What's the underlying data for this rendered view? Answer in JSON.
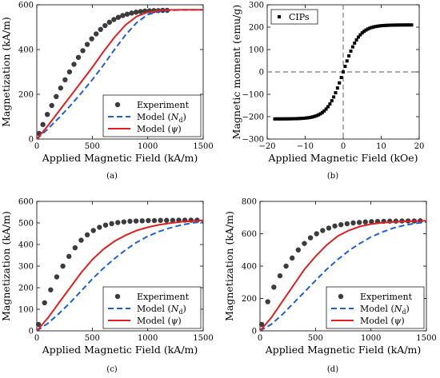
{
  "panel_labels": [
    "(a)",
    "(b)",
    "(c)",
    "(d)"
  ],
  "colors": {
    "experiment": "#3c3c3c",
    "model_nd": "#1f5fd6",
    "model_psi": "#e02020",
    "cips": "#000000",
    "zero_line": "#777777"
  },
  "chart_data": [
    {
      "id": "a",
      "type": "scatter+line",
      "xlabel": "Applied Magnetic Field (kA/m)",
      "ylabel": "Magnetization (kA/m)",
      "xlim": [
        0,
        1500
      ],
      "ylim": [
        0,
        600
      ],
      "xticks": [
        0,
        500,
        1000,
        1500
      ],
      "yticks": [
        0,
        200,
        400,
        600
      ],
      "legend": {
        "position": "bottom-right",
        "entries": [
          "Experiment",
          "Model (N_d)",
          "Model (ψ)"
        ]
      },
      "series": [
        {
          "name": "Experiment",
          "style": "markers",
          "x": [
            20,
            55,
            95,
            135,
            175,
            215,
            255,
            295,
            335,
            375,
            415,
            455,
            495,
            535,
            575,
            615,
            655,
            695,
            735,
            775,
            815,
            855,
            895,
            935,
            975,
            1015,
            1055,
            1095,
            1135,
            1175
          ],
          "y": [
            25,
            65,
            110,
            150,
            190,
            228,
            265,
            300,
            334,
            365,
            395,
            423,
            448,
            470,
            490,
            507,
            522,
            534,
            544,
            552,
            558,
            563,
            567,
            570,
            572,
            573,
            574,
            574,
            575,
            575
          ]
        },
        {
          "name": "Model (N_d)",
          "style": "dashed",
          "x": [
            0,
            100,
            200,
            300,
            400,
            500,
            600,
            700,
            800,
            900,
            1000,
            1100,
            1200,
            1300,
            1400,
            1500
          ],
          "y": [
            0,
            45,
            95,
            148,
            205,
            265,
            330,
            400,
            465,
            520,
            556,
            570,
            575,
            577,
            578,
            578
          ]
        },
        {
          "name": "Model (ψ)",
          "style": "solid",
          "x": [
            0,
            100,
            200,
            300,
            400,
            500,
            600,
            700,
            800,
            900,
            1000,
            1100,
            1200,
            1300,
            1400,
            1500
          ],
          "y": [
            0,
            60,
            125,
            190,
            255,
            320,
            390,
            455,
            510,
            548,
            567,
            574,
            577,
            578,
            578,
            578
          ]
        }
      ]
    },
    {
      "id": "b",
      "type": "scatter",
      "xlabel": "Applied Magnetic Field (kOe)",
      "ylabel": "Magnetic moment (emu/g)",
      "xlim": [
        -20,
        20
      ],
      "ylim": [
        -300,
        300
      ],
      "xticks": [
        -20,
        -10,
        0,
        10,
        20
      ],
      "yticks": [
        -300,
        -200,
        -100,
        0,
        100,
        200,
        300
      ],
      "legend": {
        "position": "top-left",
        "entries": [
          "CIPs"
        ]
      },
      "series": [
        {
          "name": "CIPs",
          "style": "square-markers",
          "function": "210*tanh(x/4.2)",
          "x_range": [
            -18,
            18
          ],
          "n_points": 73
        }
      ]
    },
    {
      "id": "c",
      "type": "scatter+line",
      "xlabel": "Applied Magnetic Field (kA/m)",
      "ylabel": "Magnetization (kA/m)",
      "xlim": [
        0,
        1500
      ],
      "ylim": [
        0,
        600
      ],
      "xticks": [
        0,
        500,
        1000,
        1500
      ],
      "yticks": [
        0,
        100,
        200,
        300,
        400,
        500,
        600
      ],
      "legend": {
        "position": "bottom-right",
        "entries": [
          "Experiment",
          "Model (N_d)",
          "Model (ψ)"
        ]
      },
      "series": [
        {
          "name": "Experiment",
          "style": "markers",
          "x": [
            15,
            70,
            125,
            180,
            235,
            290,
            345,
            400,
            455,
            510,
            565,
            620,
            675,
            730,
            785,
            840,
            895,
            950,
            1005,
            1060,
            1115,
            1170,
            1225,
            1280,
            1335,
            1390,
            1445
          ],
          "y": [
            30,
            130,
            190,
            250,
            300,
            345,
            385,
            420,
            445,
            465,
            480,
            490,
            497,
            502,
            505,
            508,
            509,
            510,
            511,
            511,
            512,
            512,
            512,
            513,
            513,
            513,
            513
          ]
        },
        {
          "name": "Model (N_d)",
          "style": "dashed",
          "x": [
            0,
            100,
            200,
            300,
            400,
            500,
            600,
            700,
            800,
            900,
            1000,
            1100,
            1200,
            1300,
            1400,
            1500
          ],
          "y": [
            0,
            35,
            80,
            130,
            185,
            240,
            290,
            335,
            375,
            410,
            438,
            460,
            477,
            490,
            500,
            506
          ]
        },
        {
          "name": "Model (ψ)",
          "style": "solid",
          "x": [
            0,
            100,
            200,
            300,
            400,
            500,
            600,
            700,
            800,
            900,
            1000,
            1100,
            1200,
            1300,
            1400,
            1500
          ],
          "y": [
            0,
            60,
            130,
            200,
            270,
            330,
            378,
            415,
            443,
            465,
            480,
            491,
            499,
            505,
            509,
            512
          ]
        }
      ]
    },
    {
      "id": "d",
      "type": "scatter+line",
      "xlabel": "Applied Magnetic Field (kA/m)",
      "ylabel": "Magnetization (kA/m)",
      "xlim": [
        0,
        1500
      ],
      "ylim": [
        0,
        800
      ],
      "xticks": [
        0,
        500,
        1000,
        1500
      ],
      "yticks": [
        0,
        200,
        400,
        600,
        800
      ],
      "legend": {
        "position": "bottom-right",
        "entries": [
          "Experiment",
          "Model (N_d)",
          "Model (ψ)"
        ]
      },
      "series": [
        {
          "name": "Experiment",
          "style": "markers",
          "x": [
            15,
            70,
            125,
            180,
            235,
            290,
            345,
            400,
            455,
            510,
            565,
            620,
            675,
            730,
            785,
            840,
            895,
            950,
            1005,
            1060,
            1115,
            1170,
            1225,
            1280,
            1335,
            1390,
            1445
          ],
          "y": [
            40,
            180,
            270,
            340,
            400,
            450,
            500,
            540,
            575,
            600,
            620,
            635,
            648,
            656,
            662,
            667,
            670,
            673,
            675,
            676,
            677,
            678,
            678,
            679,
            679,
            679,
            680
          ]
        },
        {
          "name": "Model (N_d)",
          "style": "dashed",
          "x": [
            0,
            100,
            200,
            300,
            400,
            500,
            600,
            700,
            800,
            900,
            1000,
            1100,
            1200,
            1300,
            1400,
            1500
          ],
          "y": [
            0,
            40,
            100,
            170,
            240,
            310,
            380,
            440,
            495,
            540,
            580,
            610,
            635,
            652,
            664,
            672
          ]
        },
        {
          "name": "Model (ψ)",
          "style": "solid",
          "x": [
            0,
            100,
            200,
            300,
            400,
            500,
            600,
            700,
            800,
            900,
            1000,
            1100,
            1200,
            1300,
            1400,
            1500
          ],
          "y": [
            0,
            80,
            180,
            280,
            380,
            460,
            530,
            585,
            620,
            645,
            660,
            668,
            673,
            676,
            678,
            680
          ]
        }
      ]
    }
  ]
}
